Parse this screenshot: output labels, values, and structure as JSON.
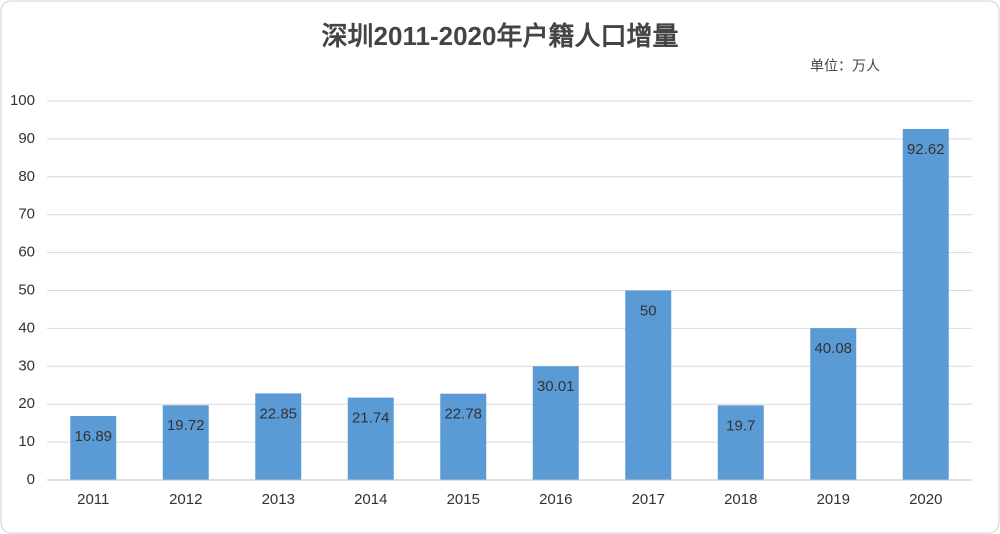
{
  "chart_data": {
    "type": "bar",
    "title": "深圳2011-2020年户籍人口增量",
    "unit": "单位：万人",
    "categories": [
      "2011",
      "2012",
      "2013",
      "2014",
      "2015",
      "2016",
      "2017",
      "2018",
      "2019",
      "2020"
    ],
    "values": [
      16.89,
      19.72,
      22.85,
      21.74,
      22.78,
      30.01,
      50,
      19.7,
      40.08,
      92.62
    ],
    "color": "#5b9bd5",
    "ylim": [
      0,
      100
    ],
    "yticks": [
      0,
      10,
      20,
      30,
      40,
      50,
      60,
      70,
      80,
      90,
      100
    ],
    "grid": true
  }
}
